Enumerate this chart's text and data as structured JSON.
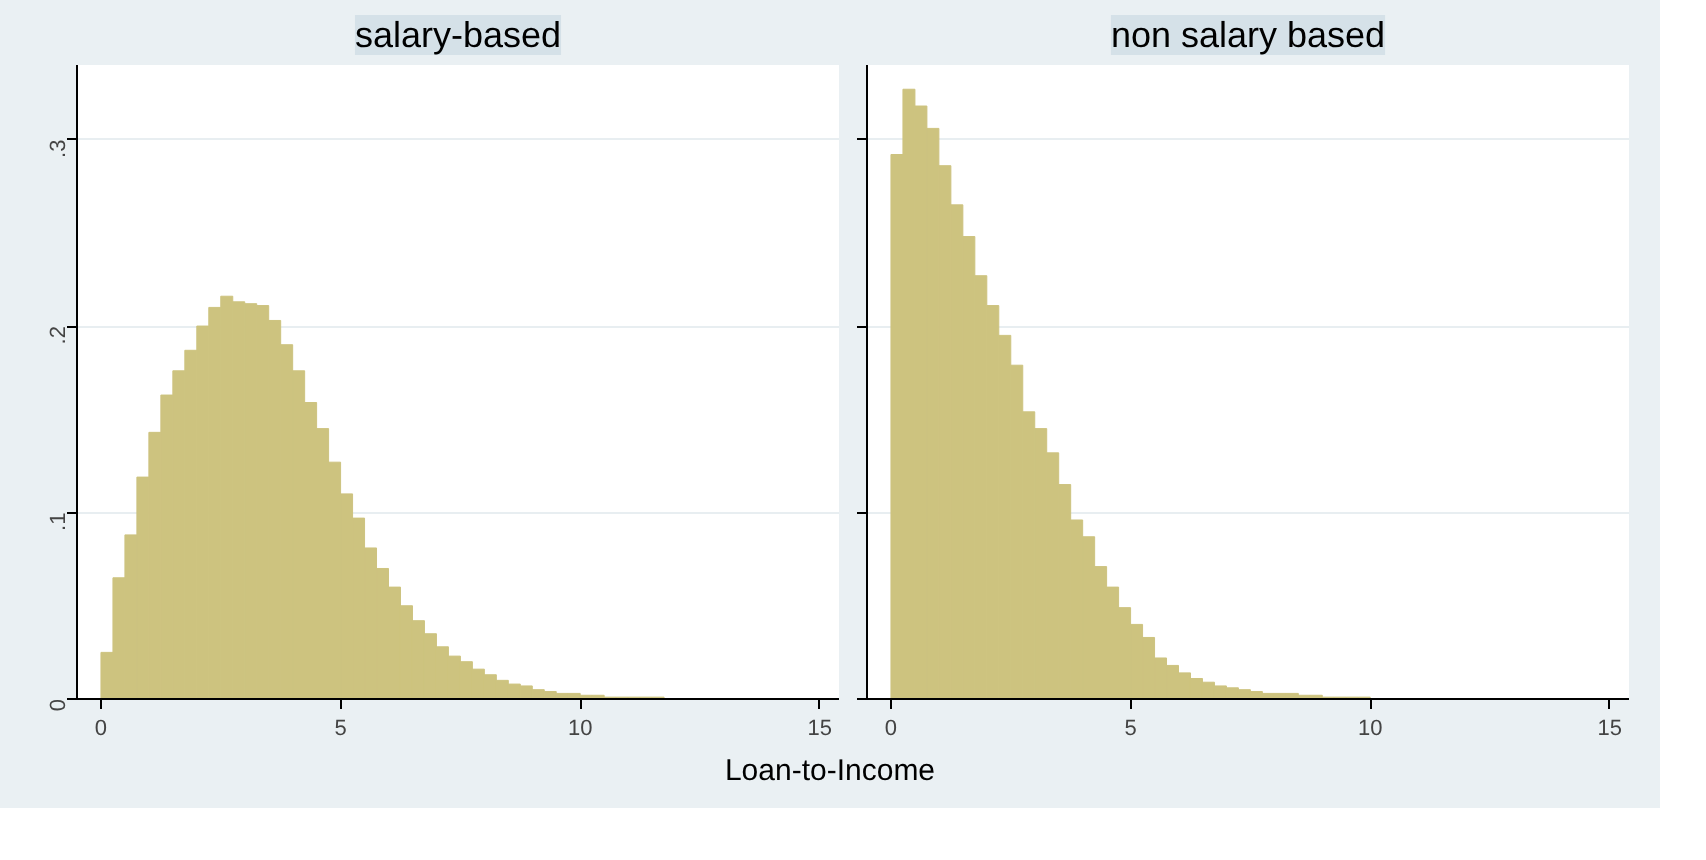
{
  "chart_data": [
    {
      "type": "histogram",
      "title": "salary-based",
      "xlabel": "Loan-to-Income",
      "color": "#cdc37f",
      "grid": "y",
      "bins": [
        0,
        0.25,
        0.5,
        0.75,
        1,
        1.25,
        1.5,
        1.75,
        2,
        2.25,
        2.5,
        2.75,
        3,
        3.25,
        3.5,
        3.75,
        4,
        4.25,
        4.5,
        4.75,
        5,
        5.25,
        5.5,
        5.75,
        6,
        6.25,
        6.5,
        6.75,
        7,
        7.25,
        7.5,
        7.75,
        8,
        8.25,
        8.5,
        8.75,
        9,
        9.25,
        9.5,
        9.75,
        10,
        10.25,
        10.5,
        10.75,
        11,
        11.25,
        11.5,
        11.75,
        12,
        12.25,
        12.5,
        12.75,
        13,
        13.25,
        13.5,
        13.75,
        14,
        14.25,
        14.5,
        14.75,
        15
      ],
      "values": [
        0.025,
        0.065,
        0.088,
        0.119,
        0.143,
        0.163,
        0.176,
        0.187,
        0.2,
        0.21,
        0.216,
        0.213,
        0.212,
        0.211,
        0.203,
        0.19,
        0.176,
        0.159,
        0.145,
        0.127,
        0.11,
        0.097,
        0.081,
        0.07,
        0.06,
        0.05,
        0.042,
        0.035,
        0.028,
        0.023,
        0.02,
        0.016,
        0.013,
        0.01,
        0.008,
        0.007,
        0.005,
        0.004,
        0.003,
        0.003,
        0.002,
        0.002,
        0.001,
        0.001,
        0.001,
        0.001,
        0.001,
        0,
        0,
        0,
        0,
        0,
        0,
        0,
        0,
        0,
        0,
        0,
        0,
        0
      ],
      "xlim": [
        -0.5,
        15.4
      ],
      "ylim": [
        0,
        0.34
      ],
      "xticks": [
        0,
        5,
        10,
        15
      ],
      "yticks": [
        {
          "value": 0,
          "label": "0"
        },
        {
          "value": 0.1,
          "label": ".1"
        },
        {
          "value": 0.2,
          "label": ".2"
        },
        {
          "value": 0.3,
          "label": ".3"
        }
      ]
    },
    {
      "type": "histogram",
      "title": "non salary based",
      "color": "#cdc37f",
      "grid": "y",
      "tick_labels": "x",
      "bins": [
        0,
        0.25,
        0.5,
        0.75,
        1,
        1.25,
        1.5,
        1.75,
        2,
        2.25,
        2.5,
        2.75,
        3,
        3.25,
        3.5,
        3.75,
        4,
        4.25,
        4.5,
        4.75,
        5,
        5.25,
        5.5,
        5.75,
        6,
        6.25,
        6.5,
        6.75,
        7,
        7.25,
        7.5,
        7.75,
        8,
        8.25,
        8.5,
        8.75,
        9,
        9.25,
        9.5,
        9.75,
        10,
        10.25,
        10.5,
        10.75,
        11,
        11.25,
        11.5,
        11.75,
        12,
        12.25,
        12.5,
        12.75,
        13,
        13.25,
        13.5,
        13.75,
        14,
        14.25,
        14.5,
        14.75,
        15
      ],
      "values": [
        0.292,
        0.327,
        0.318,
        0.306,
        0.286,
        0.265,
        0.248,
        0.227,
        0.211,
        0.195,
        0.179,
        0.154,
        0.145,
        0.132,
        0.115,
        0.096,
        0.087,
        0.071,
        0.06,
        0.049,
        0.04,
        0.033,
        0.022,
        0.018,
        0.014,
        0.011,
        0.009,
        0.007,
        0.006,
        0.005,
        0.004,
        0.003,
        0.003,
        0.003,
        0.002,
        0.002,
        0.001,
        0.001,
        0.001,
        0.001,
        0,
        0,
        0,
        0,
        0,
        0,
        0,
        0,
        0,
        0,
        0,
        0,
        0,
        0,
        0,
        0,
        0,
        0,
        0,
        0
      ],
      "xlim": [
        -0.5,
        15.4
      ],
      "ylim": [
        0,
        0.34
      ],
      "xticks": [
        0,
        5,
        10,
        15
      ],
      "yticks": [
        0,
        0.1,
        0.2,
        0.3
      ]
    }
  ]
}
